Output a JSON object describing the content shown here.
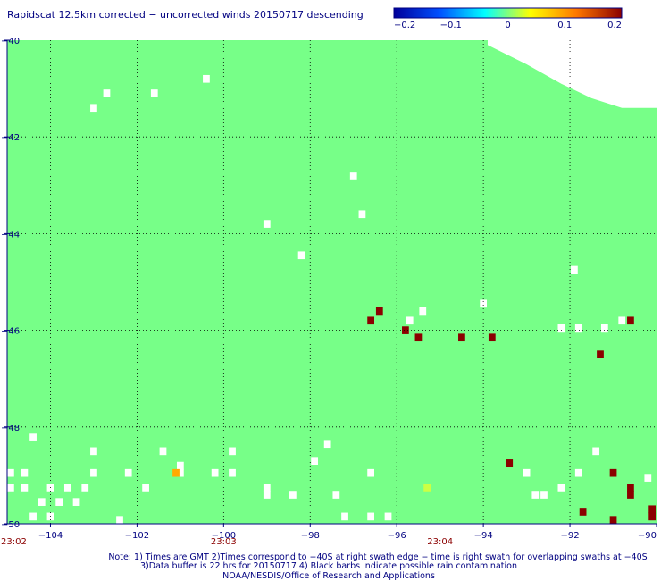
{
  "chart_data": {
    "type": "heatmap",
    "title": "Rapidscat 12.5km corrected − uncorrected winds 20150717 descending",
    "colorbar": {
      "ticks": [
        "−0.2",
        "−0.1",
        "0",
        "0.1",
        "0.2"
      ],
      "values": [
        -0.2,
        -0.1,
        0,
        0.1,
        0.2
      ],
      "colors": [
        "#00009a",
        "#0050ff",
        "#00ffff",
        "#ffff00",
        "#ff7800",
        "#8b0000"
      ]
    },
    "xlim": [
      -105,
      -90
    ],
    "ylim": [
      -50,
      -40
    ],
    "xticks": [
      -104,
      -102,
      -100,
      -98,
      -96,
      -94,
      -92,
      -90
    ],
    "xtick_labels": [
      "−104",
      "−102",
      "−100",
      "−98",
      "−96",
      "−94",
      "−92",
      "−90"
    ],
    "yticks": [
      -40,
      -42,
      -44,
      -46,
      -48,
      -50
    ],
    "ytick_labels": [
      "−40",
      "−42",
      "−44",
      "−46",
      "−48",
      "−50"
    ],
    "grid": true,
    "background_value": 0,
    "background_color": "#77ff88",
    "cell_size_deg": [
      0.16,
      0.16
    ],
    "dark_red_cells": [
      [
        -96.6,
        -45.8
      ],
      [
        -96.4,
        -45.6
      ],
      [
        -95.8,
        -46.0
      ],
      [
        -95.5,
        -46.15
      ],
      [
        -94.5,
        -46.15
      ],
      [
        -93.8,
        -46.15
      ],
      [
        -90.6,
        -45.8
      ],
      [
        -91.3,
        -46.5
      ],
      [
        -93.4,
        -48.75
      ],
      [
        -91.0,
        -48.95
      ],
      [
        -90.6,
        -49.25
      ],
      [
        -90.6,
        -49.4
      ],
      [
        -91.7,
        -49.75
      ],
      [
        -91.0,
        -49.95
      ],
      [
        -90.1,
        -49.85
      ],
      [
        -90.1,
        -49.7
      ]
    ],
    "orange_cells": [
      [
        -101.1,
        -48.95
      ]
    ],
    "yellow_cells": [
      [
        -95.3,
        -49.25
      ]
    ],
    "missing_cells": [
      [
        -102.7,
        -41.1
      ],
      [
        -103.0,
        -41.4
      ],
      [
        -101.6,
        -41.1
      ],
      [
        -100.4,
        -40.8
      ],
      [
        -97.0,
        -42.8
      ],
      [
        -96.8,
        -43.6
      ],
      [
        -99.0,
        -43.8
      ],
      [
        -98.2,
        -44.45
      ],
      [
        -91.9,
        -44.75
      ],
      [
        -94.0,
        -45.45
      ],
      [
        -95.4,
        -45.6
      ],
      [
        -95.7,
        -45.8
      ],
      [
        -92.2,
        -45.95
      ],
      [
        -91.8,
        -45.95
      ],
      [
        -91.2,
        -45.95
      ],
      [
        -90.8,
        -45.8
      ],
      [
        -104.4,
        -48.2
      ],
      [
        -103.0,
        -48.5
      ],
      [
        -101.4,
        -48.5
      ],
      [
        -99.8,
        -48.5
      ],
      [
        -97.6,
        -48.35
      ],
      [
        -97.9,
        -48.7
      ],
      [
        -91.4,
        -48.5
      ],
      [
        -105.0,
        -48.95
      ],
      [
        -104.6,
        -48.95
      ],
      [
        -103.0,
        -48.95
      ],
      [
        -102.2,
        -48.95
      ],
      [
        -101.0,
        -48.8
      ],
      [
        -101.0,
        -48.95
      ],
      [
        -100.2,
        -48.95
      ],
      [
        -99.8,
        -48.95
      ],
      [
        -96.6,
        -48.95
      ],
      [
        -93.0,
        -48.95
      ],
      [
        -91.8,
        -48.95
      ],
      [
        -90.2,
        -49.05
      ],
      [
        -105.0,
        -49.25
      ],
      [
        -104.6,
        -49.25
      ],
      [
        -104.0,
        -49.25
      ],
      [
        -103.6,
        -49.25
      ],
      [
        -103.2,
        -49.25
      ],
      [
        -101.8,
        -49.25
      ],
      [
        -99.0,
        -49.25
      ],
      [
        -92.2,
        -49.25
      ],
      [
        -99.0,
        -49.4
      ],
      [
        -98.4,
        -49.4
      ],
      [
        -97.4,
        -49.4
      ],
      [
        -92.8,
        -49.4
      ],
      [
        -92.6,
        -49.4
      ],
      [
        -104.2,
        -49.55
      ],
      [
        -103.8,
        -49.55
      ],
      [
        -103.4,
        -49.55
      ],
      [
        -104.4,
        -49.85
      ],
      [
        -104.0,
        -49.85
      ],
      [
        -97.2,
        -49.85
      ],
      [
        -96.6,
        -49.85
      ],
      [
        -96.2,
        -49.85
      ],
      [
        -102.4,
        -50.0
      ]
    ],
    "missing_region": [
      [
        -93.9,
        -40.0
      ],
      [
        -90.0,
        -40.0
      ],
      [
        -90.0,
        -41.4
      ],
      [
        -90.8,
        -41.4
      ],
      [
        -91.5,
        -41.2
      ],
      [
        -92.2,
        -40.9
      ],
      [
        -93.0,
        -40.5
      ],
      [
        -93.9,
        -40.1
      ]
    ]
  },
  "time_labels": [
    {
      "lon": -105,
      "text": "23:02"
    },
    {
      "lon": -100,
      "text": "23:03"
    },
    {
      "lon": -95,
      "text": "23:04"
    }
  ],
  "notes": [
    "Note: 1) Times are GMT 2)Times correspond to −40S at right swath edge − time is right swath for overlapping swaths at −40S",
    "3)Data buffer is 22 hrs for 20150717 4) Black barbs indicate possible rain contamination",
    "NOAA/NESDIS/Office of Research and Applications"
  ]
}
